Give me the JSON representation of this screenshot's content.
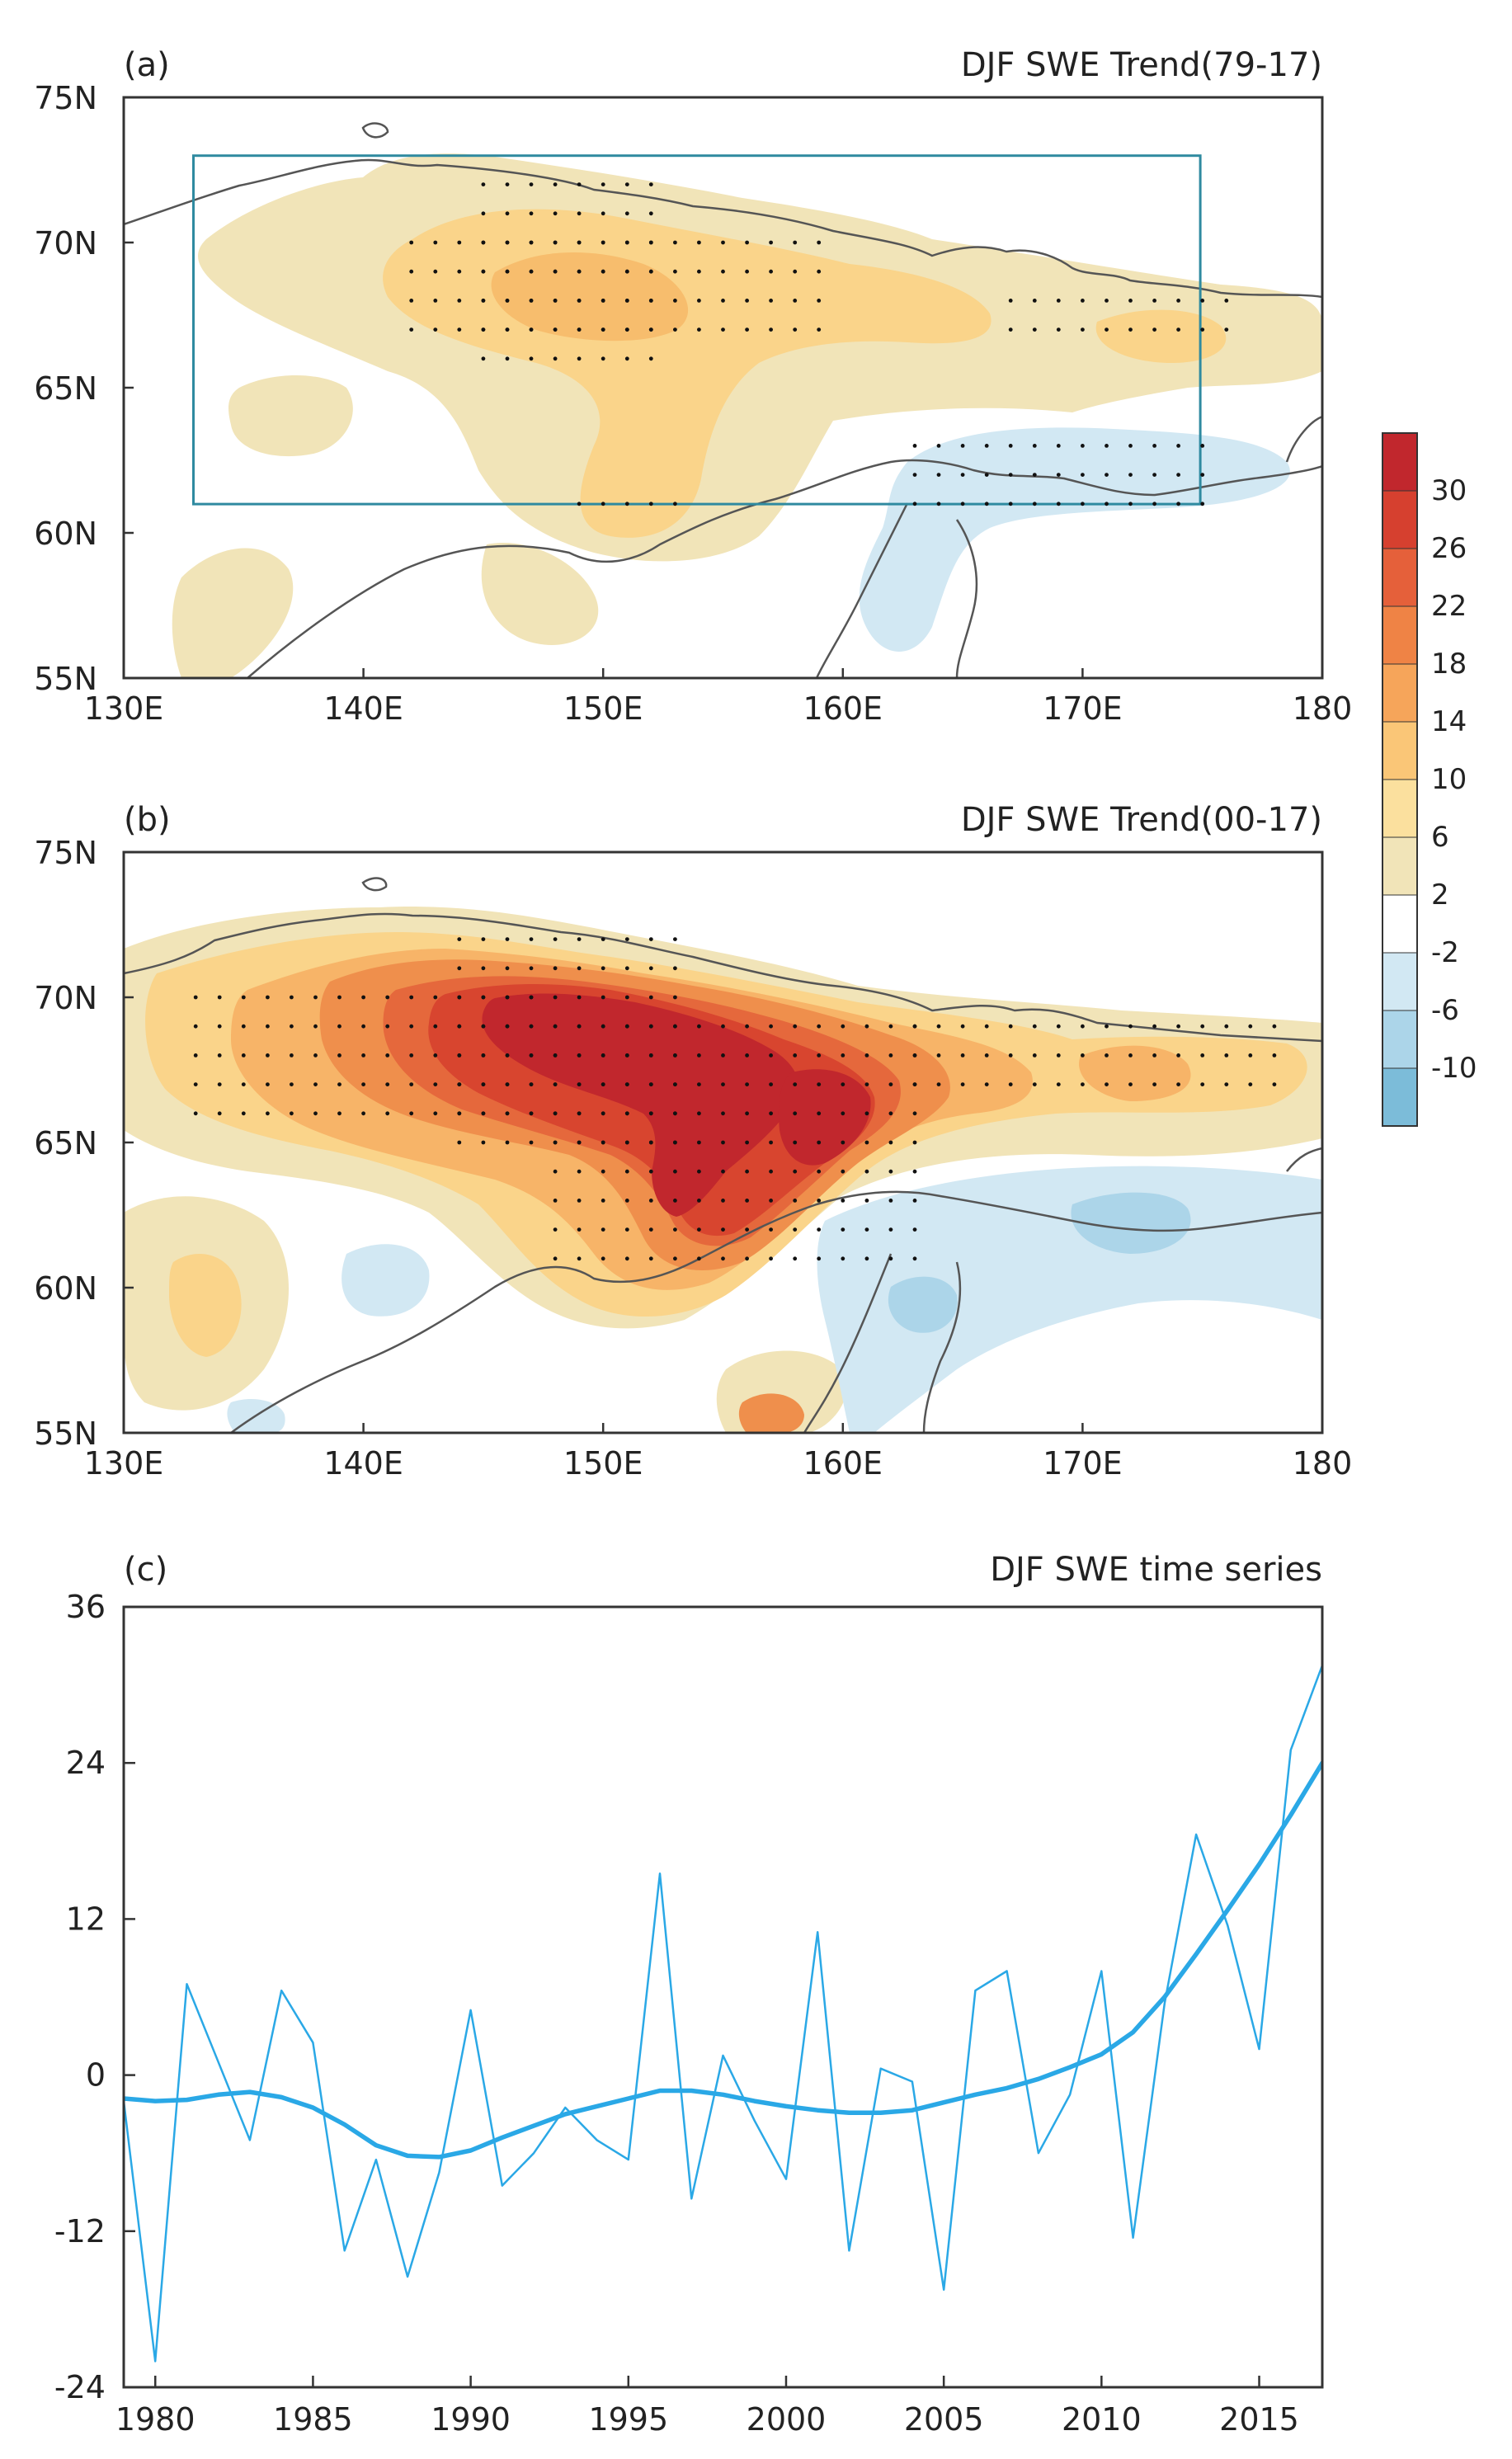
{
  "colors": {
    "frame": "#333333",
    "coast": "#555555",
    "box": "#2f8aa0",
    "series": "#2aa8e6",
    "dots": "#111111"
  },
  "panel_a": {
    "label": "(a)",
    "title": "DJF SWE Trend(79-17)",
    "lon_ticks": [
      "130E",
      "140E",
      "150E",
      "160E",
      "170E",
      "180"
    ],
    "lat_ticks": [
      "75N",
      "70N",
      "65N",
      "60N",
      "55N"
    ],
    "box": {
      "lon": [
        133,
        175
      ],
      "lat": [
        61,
        73
      ]
    }
  },
  "panel_b": {
    "label": "(b)",
    "title": "DJF SWE Trend(00-17)",
    "lon_ticks": [
      "130E",
      "140E",
      "150E",
      "160E",
      "170E",
      "180"
    ],
    "lat_ticks": [
      "75N",
      "70N",
      "65N",
      "60N",
      "55N"
    ]
  },
  "colorbar": {
    "labels": [
      "30",
      "26",
      "22",
      "18",
      "14",
      "10",
      "6",
      "2",
      "-2",
      "-6",
      "-10"
    ],
    "colors": [
      "#c1272d",
      "#d6402f",
      "#e5603a",
      "#ef8345",
      "#f6a55a",
      "#fac677",
      "#fbe09e",
      "#f1e4b8",
      "#ffffff",
      "#d2e8f3",
      "#acd5e9",
      "#7cbcd9"
    ]
  },
  "panel_c": {
    "label": "(c)",
    "title": "DJF SWE time series"
  },
  "chart_data": {
    "type": "line",
    "title": "DJF SWE time series",
    "xlabel": "",
    "ylabel": "",
    "xlim": [
      1979,
      2017
    ],
    "ylim": [
      -24,
      36
    ],
    "xticks": [
      1980,
      1985,
      1990,
      1995,
      2000,
      2005,
      2010,
      2015
    ],
    "yticks": [
      -24,
      -12,
      0,
      12,
      24,
      36
    ],
    "x": [
      1979,
      1980,
      1981,
      1982,
      1983,
      1984,
      1985,
      1986,
      1987,
      1988,
      1989,
      1990,
      1991,
      1992,
      1993,
      1994,
      1995,
      1996,
      1997,
      1998,
      1999,
      2000,
      2001,
      2002,
      2003,
      2004,
      2005,
      2006,
      2007,
      2008,
      2009,
      2010,
      2011,
      2012,
      2013,
      2014,
      2015,
      2016,
      2017
    ],
    "series": [
      {
        "name": "annual",
        "values": [
          -2,
          -22,
          7,
          1,
          -5,
          6.5,
          2.5,
          -13.5,
          -6.5,
          -15.5,
          -7.5,
          5,
          -8.5,
          -6,
          -2.5,
          -5,
          -6.5,
          15.5,
          -9.5,
          1.5,
          -3.5,
          -8,
          11,
          -13.5,
          0.5,
          -0.5,
          -16.5,
          6.5,
          8,
          -6,
          -1.5,
          8,
          -12.5,
          5.5,
          18.5,
          11.5,
          2,
          25,
          31.5
        ]
      },
      {
        "name": "smoothed",
        "values": [
          -1.8,
          -2,
          -1.9,
          -1.5,
          -1.3,
          -1.7,
          -2.5,
          -3.8,
          -5.4,
          -6.2,
          -6.3,
          -5.8,
          -4.8,
          -3.9,
          -3.0,
          -2.4,
          -1.8,
          -1.2,
          -1.2,
          -1.5,
          -2.0,
          -2.4,
          -2.7,
          -2.9,
          -2.9,
          -2.7,
          -2.1,
          -1.5,
          -1.0,
          -0.3,
          0.6,
          1.6,
          3.3,
          6.0,
          9.3,
          12.7,
          16.2,
          20.0,
          24.0
        ]
      }
    ]
  }
}
